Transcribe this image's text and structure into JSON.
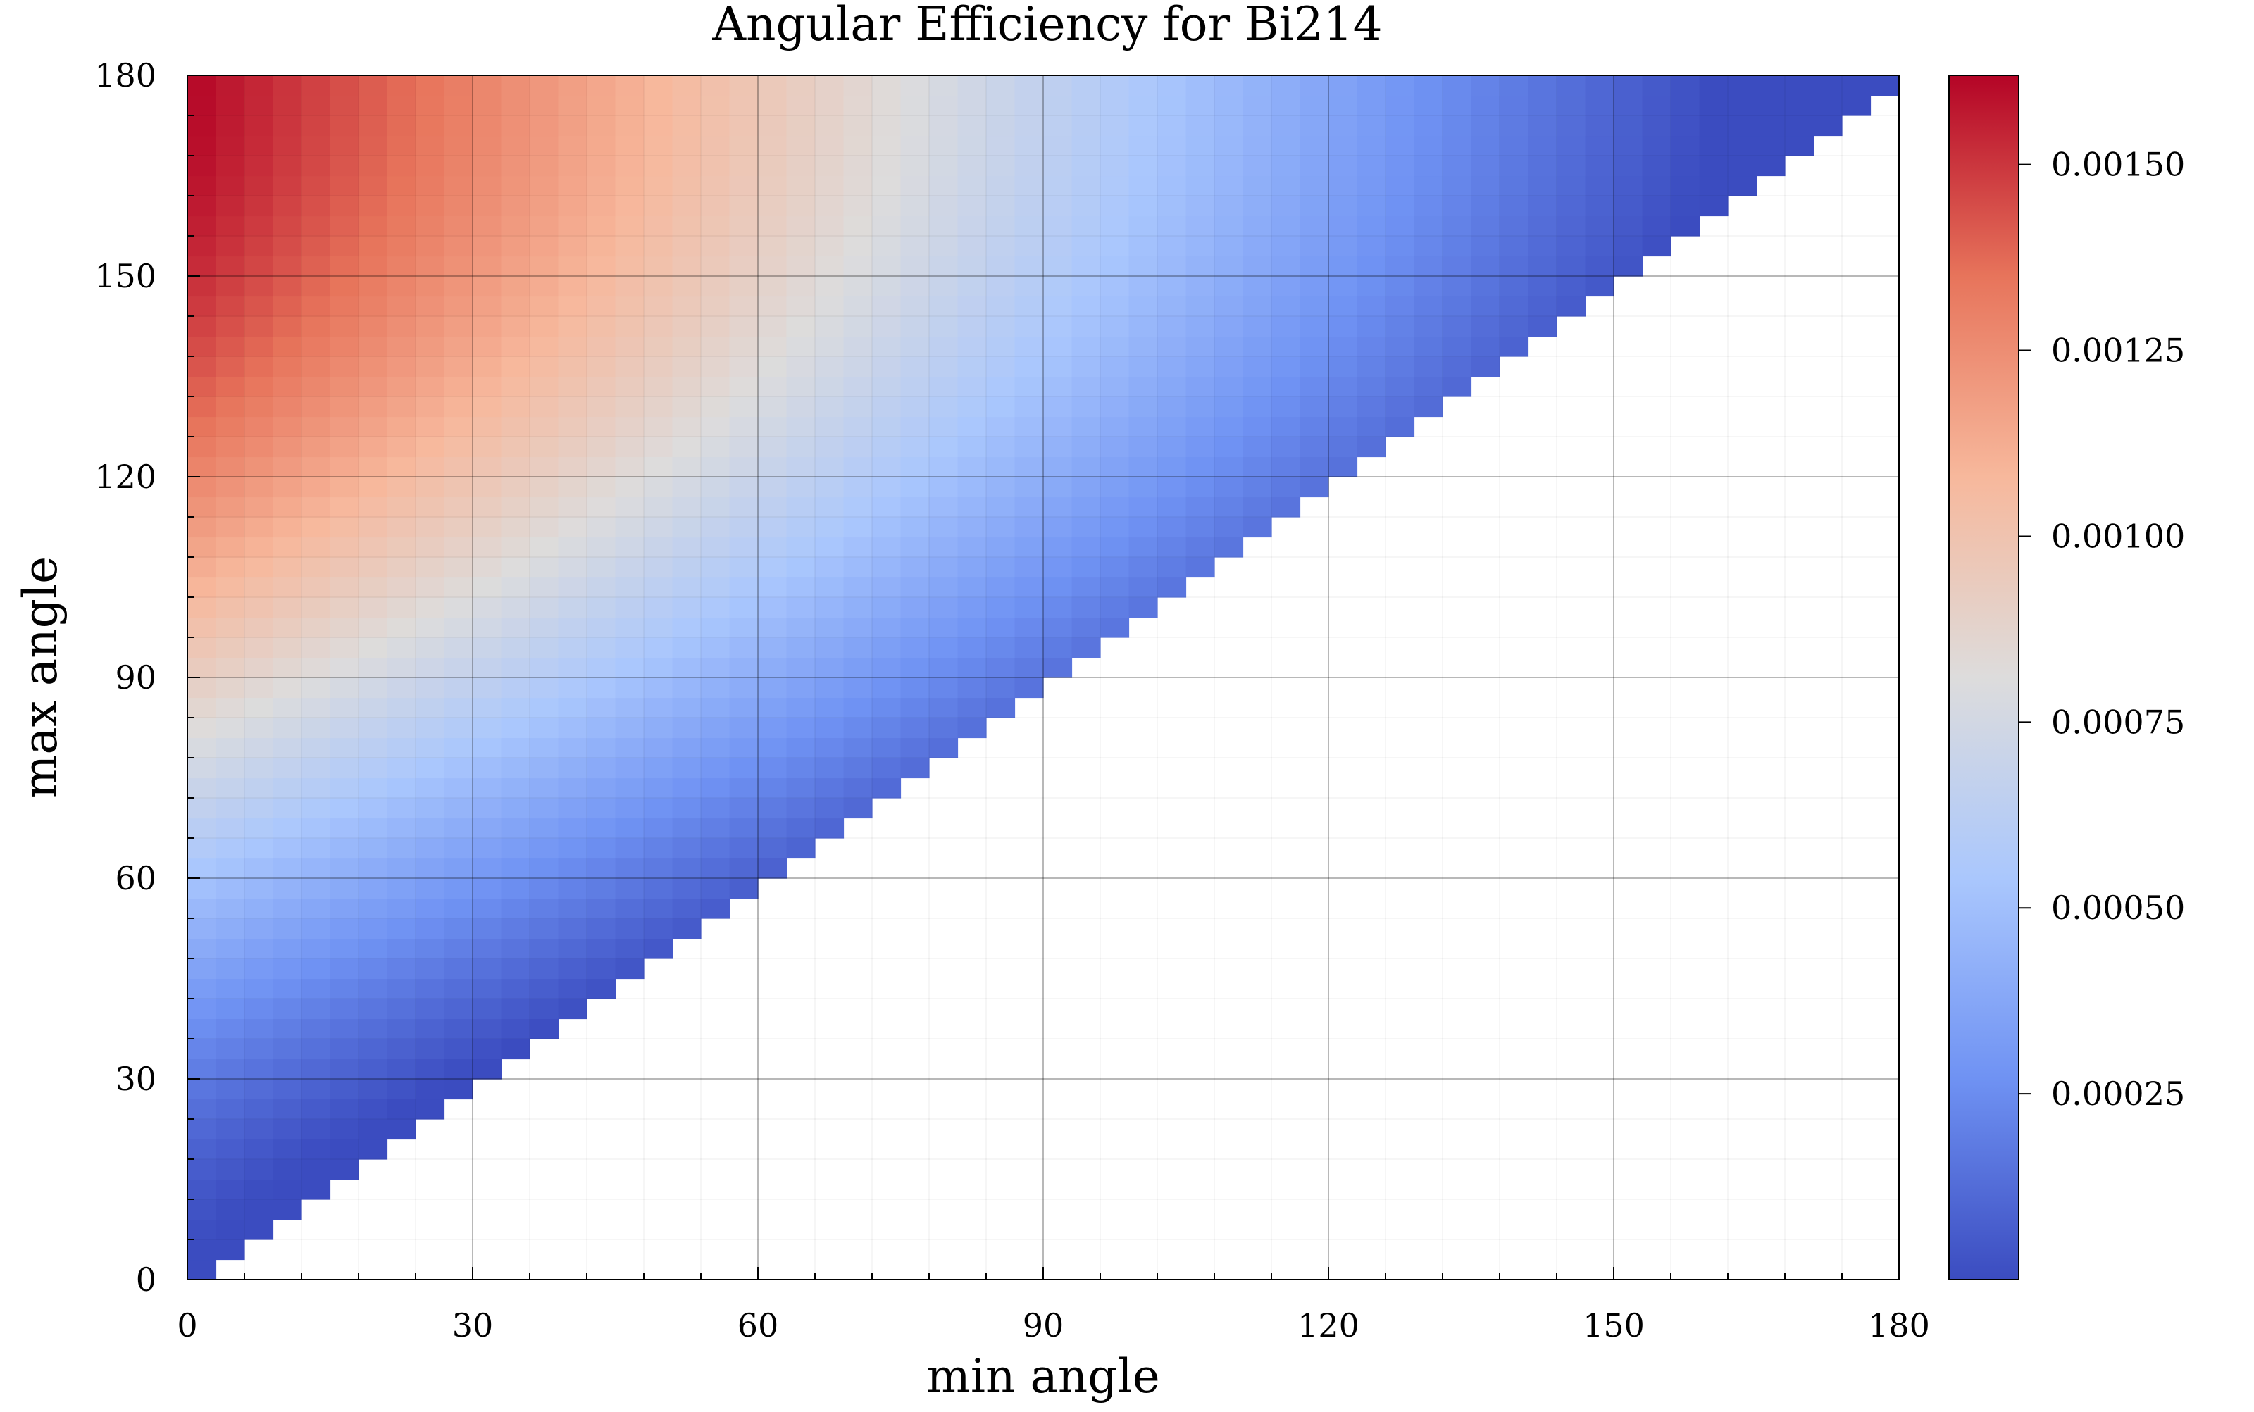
{
  "chart_data": {
    "type": "heatmap",
    "title": "Angular Efficiency for Bi214",
    "xlabel": "min angle",
    "ylabel": "max angle",
    "xlim": [
      0,
      180
    ],
    "ylim": [
      0,
      180
    ],
    "x_ticks": [
      0,
      30,
      60,
      90,
      120,
      150,
      180
    ],
    "y_ticks": [
      0,
      30,
      60,
      90,
      120,
      150,
      180
    ],
    "x_tick_labels": [
      "0",
      "30",
      "60",
      "90",
      "120",
      "150",
      "180"
    ],
    "y_tick_labels": [
      "0",
      "30",
      "60",
      "90",
      "120",
      "150",
      "180"
    ],
    "grid": true,
    "bin_size_degrees": 3,
    "cells_shown": "max angle greater than min angle (upper-left triangle)",
    "efficiency_range": [
      0.0,
      0.00162
    ],
    "efficiency_anchor_points": [
      {
        "min_angle": 0,
        "max_angle": 180,
        "value": 0.00162
      },
      {
        "min_angle": 0,
        "max_angle": 120,
        "value": 0.0011
      },
      {
        "min_angle": 0,
        "max_angle": 90,
        "value": 0.0007
      },
      {
        "min_angle": 0,
        "max_angle": 60,
        "value": 0.0004
      },
      {
        "min_angle": 0,
        "max_angle": 30,
        "value": 0.0001
      },
      {
        "min_angle": 90,
        "max_angle": 180,
        "value": 0.0008
      },
      {
        "min_angle": 150,
        "max_angle": 180,
        "value": 0.0002
      }
    ],
    "colormap": "coolwarm",
    "colormap_stops": [
      "#3b4cc0",
      "#6f92f3",
      "#aac7fd",
      "#dddcdc",
      "#f7b89c",
      "#e7745b",
      "#b40426"
    ],
    "colorbar": {
      "min": 0.0,
      "max": 0.00162,
      "ticks": [
        0.00025,
        0.0005,
        0.00075,
        0.001,
        0.00125,
        0.0015
      ],
      "tick_labels": [
        "0.00025",
        "0.00050",
        "0.00075",
        "0.00100",
        "0.00125",
        "0.00150"
      ]
    }
  }
}
